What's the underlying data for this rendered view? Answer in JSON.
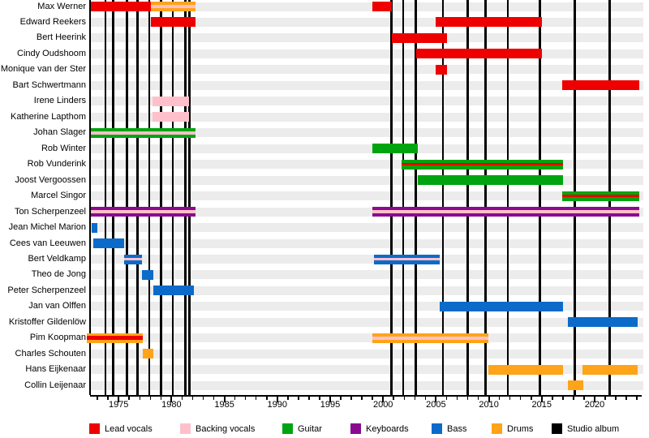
{
  "chart_data": {
    "type": "bar",
    "description": "Band member timeline: horizontal role bars per member, vertical black lines mark studio albums",
    "axis": {
      "start": 1972.3,
      "end": 2024.4,
      "major_ticks": [
        1975,
        1980,
        1985,
        1990,
        1995,
        2000,
        2005,
        2010,
        2015,
        2020
      ]
    },
    "colors": {
      "lead": "#ee0000",
      "backing": "#ffc0cb",
      "guitar": "#00a410",
      "keyboards": "#8a0a8f",
      "bass": "#0c6bc9",
      "drums": "#ffa318",
      "album": "#000000"
    },
    "legend": [
      {
        "label": "Lead vocals",
        "color_key": "lead"
      },
      {
        "label": "Backing vocals",
        "color_key": "backing"
      },
      {
        "label": "Guitar",
        "color_key": "guitar"
      },
      {
        "label": "Keyboards",
        "color_key": "keyboards"
      },
      {
        "label": "Bass",
        "color_key": "bass"
      },
      {
        "label": "Drums",
        "color_key": "drums"
      },
      {
        "label": "Studio album",
        "color_key": "album"
      }
    ],
    "albums": [
      1973.75,
      1974.5,
      1975.8,
      1976.8,
      1977.9,
      1979.0,
      1980.1,
      1981.3,
      1981.7,
      2000.8,
      2001.9,
      2003.1,
      2005.65,
      2008.0,
      2009.7,
      2011.8,
      2014.8,
      2018.1,
      2021.4
    ],
    "members": [
      {
        "name": "Max Werner",
        "segments": [
          {
            "role": "lead",
            "start": 1972.4,
            "end": 1978.05
          },
          {
            "role": "drums",
            "stripe": "backing",
            "start": 1978.05,
            "end": 1982.3
          },
          {
            "role": "lead",
            "start": 1999.0,
            "end": 2000.85
          }
        ]
      },
      {
        "name": "Edward Reekers",
        "segments": [
          {
            "role": "lead",
            "start": 1978.05,
            "end": 1982.3
          },
          {
            "role": "lead",
            "start": 2005.0,
            "end": 2015.0
          }
        ]
      },
      {
        "name": "Bert Heerink",
        "segments": [
          {
            "role": "lead",
            "start": 2000.85,
            "end": 2006.05
          }
        ]
      },
      {
        "name": "Cindy Oudshoom",
        "segments": [
          {
            "role": "lead",
            "start": 2003.1,
            "end": 2015.0
          }
        ]
      },
      {
        "name": "Monique van der Ster",
        "segments": [
          {
            "role": "lead",
            "start": 2005.0,
            "end": 2006.05
          }
        ]
      },
      {
        "name": "Bart Schwertmann",
        "segments": [
          {
            "role": "lead",
            "start": 2016.9,
            "end": 2024.2
          }
        ]
      },
      {
        "name": "Irene Linders",
        "segments": [
          {
            "role": "backing",
            "start": 1978.2,
            "end": 1981.65
          }
        ]
      },
      {
        "name": "Katherine Lapthom",
        "segments": [
          {
            "role": "backing",
            "start": 1978.2,
            "end": 1981.65
          }
        ]
      },
      {
        "name": "Johan Slager",
        "segments": [
          {
            "role": "guitar",
            "stripe": "backing",
            "start": 1972.4,
            "end": 1982.3
          }
        ]
      },
      {
        "name": "Rob Winter",
        "segments": [
          {
            "role": "guitar",
            "start": 1999.0,
            "end": 2003.3
          }
        ]
      },
      {
        "name": "Rob Vunderink",
        "segments": [
          {
            "role": "guitar",
            "stripe": "lead",
            "start": 2001.75,
            "end": 2017.0
          }
        ]
      },
      {
        "name": "Joost Vergoossen",
        "segments": [
          {
            "role": "guitar",
            "start": 2003.3,
            "end": 2017.0
          }
        ]
      },
      {
        "name": "Marcel Singor",
        "segments": [
          {
            "role": "guitar",
            "stripe": "lead",
            "start": 2016.9,
            "end": 2024.2
          }
        ]
      },
      {
        "name": "Ton Scherpenzeel",
        "segments": [
          {
            "role": "keyboards",
            "stripe": "backing",
            "start": 1972.4,
            "end": 1982.3
          },
          {
            "role": "keyboards",
            "stripe": "backing",
            "start": 1999.0,
            "end": 2024.2
          }
        ]
      },
      {
        "name": "Jean Michel Marion",
        "segments": [
          {
            "role": "bass",
            "start": 1972.45,
            "end": 1973.0
          }
        ]
      },
      {
        "name": "Cees van Leeuwen",
        "segments": [
          {
            "role": "bass",
            "start": 1972.6,
            "end": 1975.5
          }
        ]
      },
      {
        "name": "Bert Veldkamp",
        "segments": [
          {
            "role": "bass",
            "stripe": "backing",
            "start": 1975.5,
            "end": 1977.2
          },
          {
            "role": "bass",
            "stripe": "backing",
            "start": 1999.15,
            "end": 2005.35
          }
        ]
      },
      {
        "name": "Theo de Jong",
        "segments": [
          {
            "role": "bass",
            "start": 1977.2,
            "end": 1978.3
          }
        ]
      },
      {
        "name": "Peter Scherpenzeel",
        "segments": [
          {
            "role": "bass",
            "start": 1978.3,
            "end": 1982.1
          }
        ]
      },
      {
        "name": "Jan van Olffen",
        "segments": [
          {
            "role": "bass",
            "start": 2005.35,
            "end": 2017.0
          }
        ]
      },
      {
        "name": "Kristoffer Gildenlöw",
        "segments": [
          {
            "role": "bass",
            "start": 2017.45,
            "end": 2024.1
          }
        ]
      },
      {
        "name": "Pim Koopman",
        "segments": [
          {
            "role": "drums",
            "stripe": "lead",
            "stripe_h": 5,
            "start": 1972.0,
            "end": 1977.25
          },
          {
            "role": "drums",
            "stripe": "backing",
            "start": 1999.0,
            "end": 2009.95
          }
        ]
      },
      {
        "name": "Charles Schouten",
        "segments": [
          {
            "role": "drums",
            "start": 1977.25,
            "end": 1978.25
          }
        ]
      },
      {
        "name": "Hans Eijkenaar",
        "segments": [
          {
            "role": "drums",
            "start": 2009.95,
            "end": 2017.0
          },
          {
            "role": "drums",
            "start": 2018.85,
            "end": 2024.1
          }
        ]
      },
      {
        "name": "Collin Leijenaar",
        "segments": [
          {
            "role": "drums",
            "start": 2017.45,
            "end": 2018.9
          }
        ]
      }
    ]
  }
}
